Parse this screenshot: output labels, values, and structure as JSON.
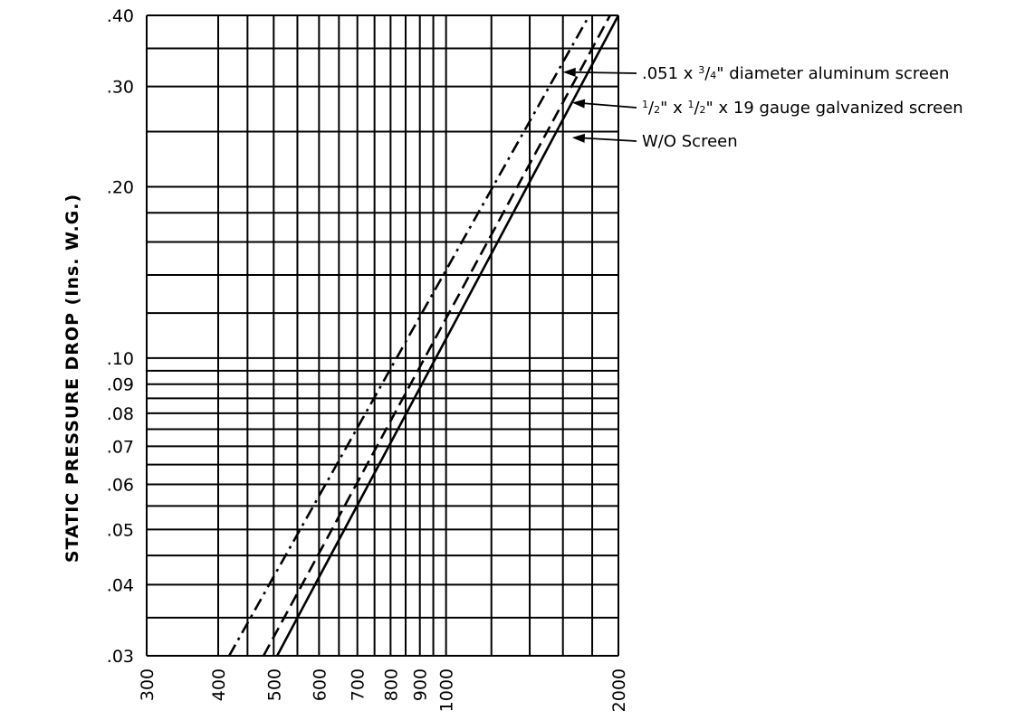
{
  "chart_data": {
    "type": "line",
    "xscale": "log",
    "yscale": "log",
    "xlim": [
      300,
      2000
    ],
    "ylim": [
      0.03,
      0.4
    ],
    "ylabel": "STATIC PRESSURE DROP (Ins. W.G.)",
    "xlabel": "",
    "x_tick_labels": [
      {
        "value": 300,
        "label": "300"
      },
      {
        "value": 400,
        "label": "400"
      },
      {
        "value": 500,
        "label": "500"
      },
      {
        "value": 600,
        "label": "600"
      },
      {
        "value": 700,
        "label": "700"
      },
      {
        "value": 800,
        "label": "800"
      },
      {
        "value": 900,
        "label": "900"
      },
      {
        "value": 1000,
        "label": "1000"
      },
      {
        "value": 2000,
        "label": "2000"
      }
    ],
    "y_tick_labels": [
      {
        "value": 0.03,
        "label": ".03"
      },
      {
        "value": 0.04,
        "label": ".04"
      },
      {
        "value": 0.05,
        "label": ".05"
      },
      {
        "value": 0.06,
        "label": ".06"
      },
      {
        "value": 0.07,
        "label": ".07"
      },
      {
        "value": 0.08,
        "label": ".08"
      },
      {
        "value": 0.09,
        "label": ".09"
      },
      {
        "value": 0.1,
        "label": ".10"
      },
      {
        "value": 0.2,
        "label": ".20"
      },
      {
        "value": 0.3,
        "label": ".30"
      },
      {
        "value": 0.4,
        "label": ".40"
      }
    ],
    "x_gridlines": [
      300,
      400,
      450,
      500,
      550,
      600,
      650,
      700,
      750,
      800,
      850,
      900,
      950,
      1000,
      1200,
      1400,
      1600,
      1800,
      2000
    ],
    "y_gridlines": [
      0.03,
      0.035,
      0.04,
      0.045,
      0.05,
      0.055,
      0.06,
      0.065,
      0.07,
      0.075,
      0.08,
      0.085,
      0.09,
      0.095,
      0.1,
      0.12,
      0.14,
      0.16,
      0.18,
      0.2,
      0.25,
      0.3,
      0.35,
      0.4
    ],
    "grid": true,
    "series": [
      {
        "name": ".051 x 3/4\" diameter aluminum screen",
        "style": "dashdot",
        "x": [
          418,
          1779
        ],
        "y": [
          0.03,
          0.4
        ]
      },
      {
        "name": "1/2\" x 1/2\" x 19 gauge galvanized screen",
        "style": "dashed",
        "x": [
          480,
          1934
        ],
        "y": [
          0.03,
          0.4
        ]
      },
      {
        "name": "W/O Screen",
        "style": "solid",
        "x": [
          507,
          2000
        ],
        "y": [
          0.03,
          0.4
        ]
      }
    ],
    "annotations": [
      {
        "series": 0,
        "text_parts": [
          ".051 x ",
          "3",
          "/",
          "4",
          "\" diameter aluminum screen"
        ],
        "arrow_to": [
          1600,
          0.318
        ]
      },
      {
        "series": 1,
        "text_parts": [
          "1",
          "/",
          "2",
          "\"  x ",
          "1",
          "/",
          "2",
          "\" x 19 gauge galvanized screen"
        ],
        "arrow_to": [
          1660,
          0.281
        ]
      },
      {
        "series": 2,
        "text_parts": [
          "W/O Screen"
        ],
        "arrow_to": [
          1660,
          0.244
        ]
      }
    ]
  },
  "colors": {
    "line": "#000000",
    "background": "#ffffff"
  }
}
